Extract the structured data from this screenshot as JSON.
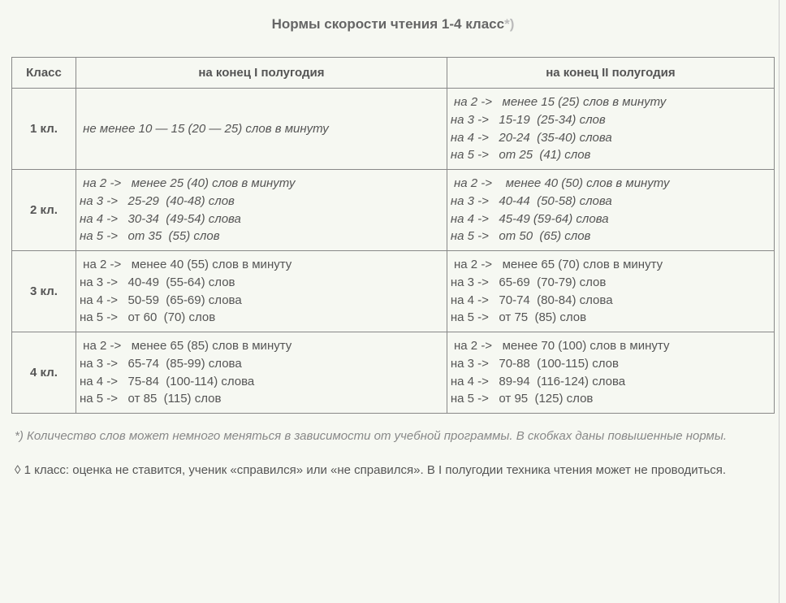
{
  "title_main": "Нормы скорости чтения 1-4 класс",
  "title_star": "*)",
  "colors": {
    "background": "#f6f8f2",
    "text": "#555555",
    "heading": "#666666",
    "star": "#bbbbbb",
    "note": "#888888",
    "table_border": "#888888"
  },
  "table": {
    "headers": {
      "class": "Класс",
      "sem1": "на конец I полугодия",
      "sem2": "на конец II полугодия"
    },
    "rows": [
      {
        "class_label": "1 кл.",
        "sem1_single": " не менее 10 — 15 (20 — 25) слов в минуту",
        "sem1_italic": true,
        "sem2_lines": [
          " на 2 ->   менее 15 (25) слов в минуту",
          "на 3 ->   15-19  (25-34) слов",
          "на 4 ->   20-24  (35-40) слова",
          "на 5 ->   от 25  (41) слов"
        ],
        "sem2_italic": true
      },
      {
        "class_label": "2 кл.",
        "sem1_lines": [
          " на 2 ->   менее 25 (40) слов в минуту",
          "на 3 ->   25-29  (40-48) слов",
          "на 4 ->   30-34  (49-54) слова",
          "на 5 ->   от 35  (55) слов"
        ],
        "sem1_italic": true,
        "sem2_lines": [
          " на 2 ->    менее 40 (50) слов в минуту",
          "на 3 ->   40-44  (50-58) слова",
          "на 4 ->   45-49 (59-64) слова",
          "на 5 ->   от 50  (65) слов"
        ],
        "sem2_italic": true
      },
      {
        "class_label": "3 кл.",
        "sem1_lines": [
          " на 2 ->   менее 40 (55) слов в минуту",
          "на 3 ->   40-49  (55-64) слов",
          "на 4 ->   50-59  (65-69) слова",
          "на 5 ->   от 60  (70) слов"
        ],
        "sem1_italic": false,
        "sem2_lines": [
          " на 2 ->   менее 65 (70) слов в минуту",
          "на 3 ->   65-69  (70-79) слов",
          "на 4 ->   70-74  (80-84) слова",
          "на 5 ->   от 75  (85) слов"
        ],
        "sem2_italic": false
      },
      {
        "class_label": "4 кл.",
        "sem1_lines": [
          " на 2 ->   менее 65 (85) слов в минуту",
          "на 3 ->   65-74  (85-99) слова",
          "на 4 ->   75-84  (100-114) слова",
          "на 5 ->   от 85  (115) слов"
        ],
        "sem1_italic": false,
        "sem2_lines": [
          " на 2 ->   менее 70 (100) слов в минуту",
          "на 3 ->   70-88  (100-115) слов",
          "на 4 ->   89-94  (116-124) слова",
          "на 5 ->   от 95  (125) слов"
        ],
        "sem2_italic": false
      }
    ]
  },
  "footnote": "*) Количество слов может немного меняться в зависимости от учебной программы. В скобках даны повышенные нормы.",
  "extra_note": "◊ 1 класс: оценка не ставится, ученик «справился» или «не справился». В I полугодии техника чтения может не проводиться."
}
